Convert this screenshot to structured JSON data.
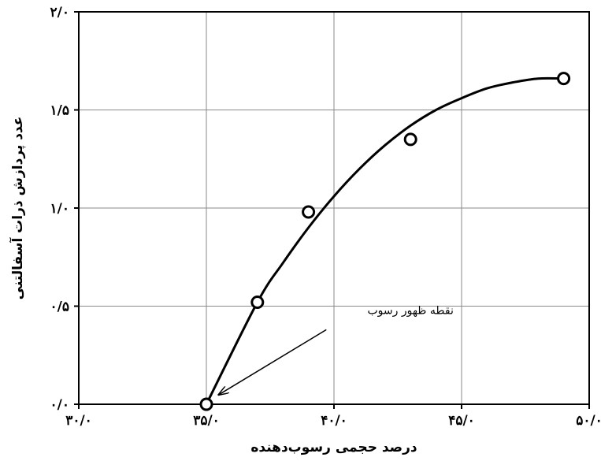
{
  "chart_data": {
    "type": "scatter",
    "title": "",
    "xlabel": "درصد حجمی رسوب‌دهنده",
    "ylabel": "عدد پردازش ذرات آسفالتنی",
    "xlim": [
      30,
      50
    ],
    "ylim": [
      0,
      2
    ],
    "x_ticks": [
      30,
      35,
      40,
      45,
      50
    ],
    "y_ticks": [
      0,
      0.5,
      1,
      1.5,
      2
    ],
    "x_tick_labels": [
      "۳۰/۰",
      "۳۵/۰",
      "۴۰/۰",
      "۴۵/۰",
      "۵۰/۰"
    ],
    "y_tick_labels": [
      "۰/۰",
      "۰/۵",
      "۱/۰",
      "۱/۵",
      "۲/۰"
    ],
    "grid": true,
    "series": [
      {
        "marker": "open-circle",
        "points": [
          {
            "x": 35.0,
            "y": 0.0
          },
          {
            "x": 37.0,
            "y": 0.52
          },
          {
            "x": 39.0,
            "y": 0.98
          },
          {
            "x": 43.0,
            "y": 1.35
          },
          {
            "x": 49.0,
            "y": 1.66
          }
        ]
      }
    ],
    "trend_curve": [
      {
        "x": 35.0,
        "y": 0.0
      },
      {
        "x": 37.0,
        "y": 0.52
      },
      {
        "x": 38.0,
        "y": 0.72
      },
      {
        "x": 39.0,
        "y": 0.9
      },
      {
        "x": 40.0,
        "y": 1.06
      },
      {
        "x": 41.0,
        "y": 1.2
      },
      {
        "x": 42.0,
        "y": 1.32
      },
      {
        "x": 43.0,
        "y": 1.42
      },
      {
        "x": 44.0,
        "y": 1.5
      },
      {
        "x": 45.0,
        "y": 1.56
      },
      {
        "x": 46.0,
        "y": 1.61
      },
      {
        "x": 47.0,
        "y": 1.64
      },
      {
        "x": 48.0,
        "y": 1.66
      },
      {
        "x": 49.0,
        "y": 1.66
      }
    ],
    "annotation": {
      "text": "نقطه ظهور رسوب",
      "text_x": 43.0,
      "text_y": 0.46,
      "arrow_from": {
        "x": 39.7,
        "y": 0.38
      },
      "arrow_to": {
        "x": 35.5,
        "y": 0.05
      }
    }
  }
}
